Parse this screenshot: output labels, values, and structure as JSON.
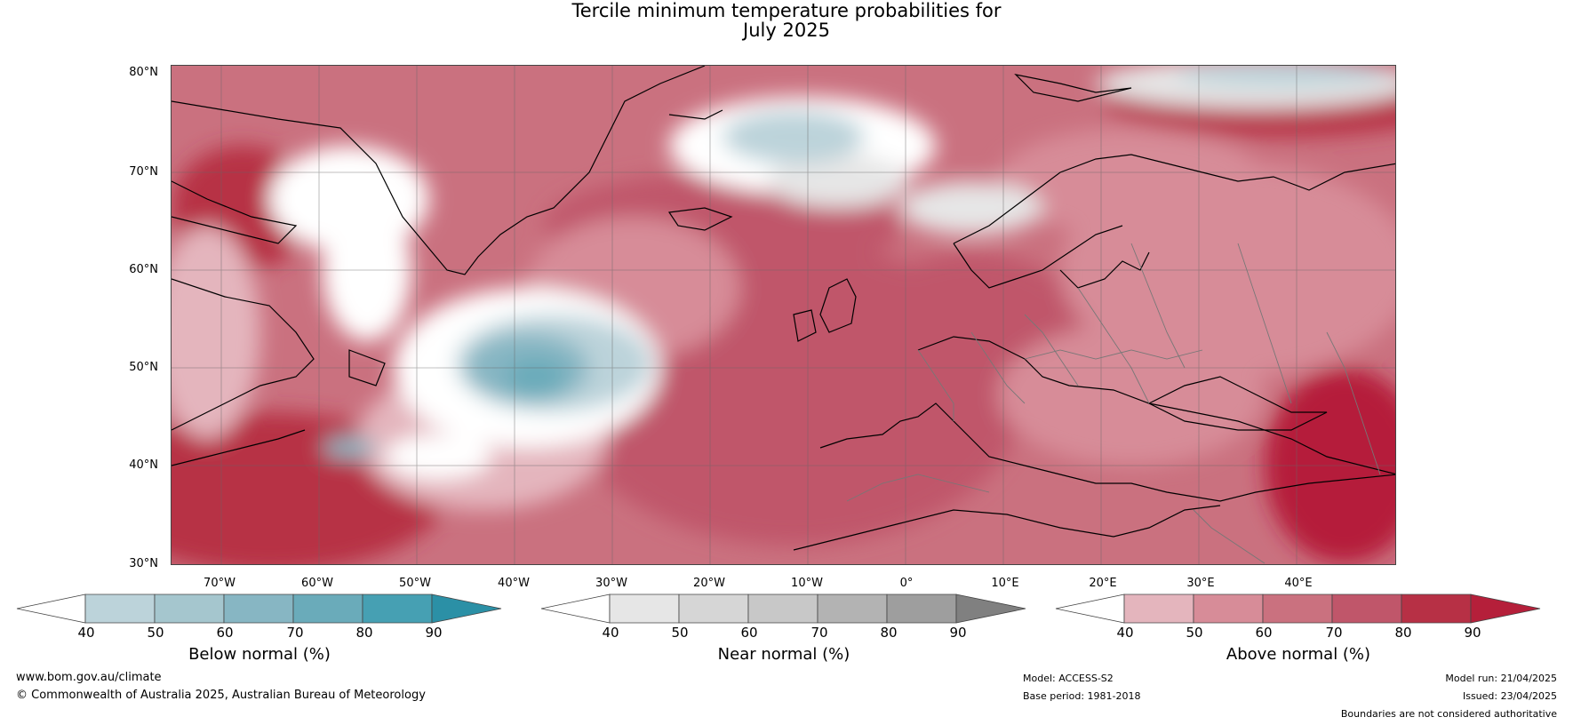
{
  "title": {
    "line1": "Tercile minimum temperature probabilities for",
    "line2": "July 2025"
  },
  "latitude_labels": [
    "80°N",
    "70°N",
    "60°N",
    "50°N",
    "40°N",
    "30°N"
  ],
  "longitude_labels": [
    "70°W",
    "60°W",
    "50°W",
    "40°W",
    "30°W",
    "20°W",
    "10°W",
    "0°",
    "10°E",
    "20°E",
    "30°E",
    "40°E"
  ],
  "colorbars": [
    {
      "label": "Below normal (%)",
      "ticks": [
        "40",
        "50",
        "60",
        "70",
        "80",
        "90"
      ],
      "colors": [
        "#ffffff",
        "#bcd3da",
        "#a5c6ce",
        "#87b6c3",
        "#6aabba",
        "#46a0b3",
        "#2b90a6"
      ]
    },
    {
      "label": "Near normal (%)",
      "ticks": [
        "40",
        "50",
        "60",
        "70",
        "80",
        "90"
      ],
      "colors": [
        "#ffffff",
        "#e6e6e6",
        "#d6d6d6",
        "#c8c8c8",
        "#b3b3b3",
        "#9e9e9e",
        "#808080"
      ]
    },
    {
      "label": "Above normal (%)",
      "ticks": [
        "40",
        "50",
        "60",
        "70",
        "80",
        "90"
      ],
      "colors": [
        "#ffffff",
        "#e4b5bd",
        "#d78c98",
        "#ca717f",
        "#c0566a",
        "#b73045",
        "#b51f3a"
      ]
    }
  ],
  "footer": {
    "website": "www.bom.gov.au/climate",
    "copyright": "© Commonwealth of Australia 2025, Australian Bureau of Meteorology",
    "model": "Model: ACCESS-S2",
    "base_period": "Base period: 1981-2018",
    "model_run": "Model run: 21/04/2025",
    "issued": "Issued: 23/04/2025",
    "disclaimer": "Boundaries are not considered authoritative"
  }
}
